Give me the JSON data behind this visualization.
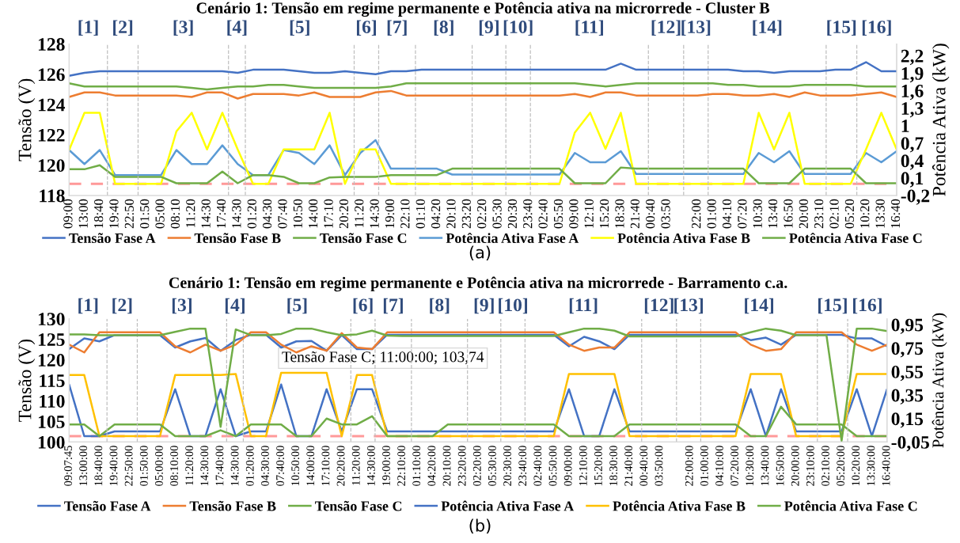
{
  "chart_data": [
    {
      "type": "line",
      "title": "Cenário 1: Tensão em regime permanente e Potência ativa na microrrede - Cluster B",
      "ylabel": "Tensão (V)",
      "y2label": "Potência Ativa (kW)",
      "legend": "bottom",
      "grid": false,
      "categories": [
        "09:00",
        "13:00",
        "18:40",
        "19:40",
        "22:50",
        "01:50",
        "05:00",
        "08:10",
        "11:20",
        "14:30",
        "17:40",
        "14:30",
        "01:20",
        "04:30",
        "07:40",
        "10:50",
        "14:00",
        "17:10",
        "20:20",
        "11:20",
        "14:30",
        "19:00",
        "22:10",
        "01:10",
        "04:20",
        "20:10",
        "23:20",
        "02:20",
        "05:30",
        "20:30",
        "23:40",
        "02:40",
        "05:50",
        "09:00",
        "12:10",
        "15:20",
        "18:30",
        "21:40",
        "00:40",
        "03:50",
        null,
        "22:00",
        "01:00",
        "04:10",
        "07:20",
        "10:30",
        "13:40",
        "16:50",
        "20:00",
        "23:10",
        "02:10",
        "05:20",
        "10:20",
        "13:30",
        "16:40"
      ],
      "ylim": [
        118,
        128
      ],
      "yticks": [
        118,
        120,
        122,
        124,
        126,
        128
      ],
      "y2lim": [
        -0.2,
        2.4
      ],
      "y2ticks": [
        {
          "value": -0.2,
          "label": "-0,2"
        },
        {
          "value": 0.1,
          "label": "0,1"
        },
        {
          "value": 0.4,
          "label": "0,4"
        },
        {
          "value": 0.7,
          "label": "0,7"
        },
        {
          "value": 1,
          "label": "1"
        },
        {
          "value": 1.3,
          "label": "1,3"
        },
        {
          "value": 1.6,
          "label": "1,6"
        },
        {
          "value": 1.9,
          "label": "1,9"
        },
        {
          "value": 2.2,
          "label": "2,2"
        }
      ],
      "series": [
        {
          "name": "Tensão Fase A",
          "color": "#4472c4",
          "values": [
            125.9,
            126.1,
            126.2,
            126.2,
            126.2,
            126.2,
            126.2,
            126.2,
            126.2,
            126.2,
            126.2,
            126.1,
            126.3,
            126.3,
            126.3,
            126.2,
            126.1,
            126.1,
            126.2,
            126.1,
            126.0,
            126.2,
            126.2,
            126.3,
            126.3,
            126.3,
            126.3,
            126.3,
            126.3,
            126.3,
            126.3,
            126.3,
            126.3,
            126.3,
            126.3,
            126.3,
            126.7,
            126.3,
            126.3,
            126.3,
            126.3,
            126.3,
            126.3,
            126.3,
            126.2,
            126.2,
            126.1,
            126.2,
            126.2,
            126.2,
            126.3,
            126.3,
            126.8,
            126.2,
            126.2
          ]
        },
        {
          "name": "Tensão Fase B",
          "color": "#ed7d31",
          "values": [
            124.5,
            124.8,
            124.8,
            124.6,
            124.6,
            124.6,
            124.6,
            124.6,
            124.5,
            124.8,
            124.8,
            124.4,
            124.7,
            124.7,
            124.7,
            124.6,
            124.8,
            124.5,
            124.5,
            124.5,
            124.8,
            124.9,
            124.6,
            124.6,
            124.6,
            124.6,
            124.6,
            124.6,
            124.6,
            124.6,
            124.6,
            124.6,
            124.6,
            124.7,
            124.5,
            124.8,
            124.8,
            124.6,
            124.6,
            124.6,
            124.6,
            124.6,
            124.7,
            124.7,
            124.6,
            124.6,
            124.7,
            124.5,
            124.8,
            124.6,
            124.6,
            124.6,
            124.7,
            124.8,
            124.5
          ]
        },
        {
          "name": "Tensão Fase C",
          "color": "#70ad47",
          "values": [
            125.4,
            125.2,
            125.2,
            125.2,
            125.2,
            125.2,
            125.2,
            125.2,
            125.1,
            125.0,
            125.1,
            125.2,
            125.2,
            125.3,
            125.3,
            125.2,
            125.1,
            125.1,
            125.1,
            125.1,
            125.1,
            125.2,
            125.4,
            125.4,
            125.4,
            125.4,
            125.4,
            125.4,
            125.4,
            125.4,
            125.4,
            125.4,
            125.4,
            125.4,
            125.3,
            125.2,
            125.3,
            125.4,
            125.4,
            125.4,
            125.4,
            125.4,
            125.4,
            125.3,
            125.3,
            125.2,
            125.2,
            125.2,
            125.3,
            125.3,
            125.3,
            125.3,
            125.2,
            125.2,
            125.2
          ]
        },
        {
          "name": "Potência Ativa Fase A",
          "color": "#5b9bd5",
          "axis": "y2",
          "values": [
            0.58,
            0.34,
            0.58,
            0.15,
            0.15,
            0.15,
            0.15,
            0.58,
            0.34,
            0.34,
            0.66,
            0.34,
            0.15,
            0.15,
            0.58,
            0.53,
            0.34,
            0.66,
            0.15,
            0.53,
            0.75,
            0.26,
            0.26,
            0.26,
            0.26,
            0.16,
            0.16,
            0.16,
            0.16,
            0.16,
            0.16,
            0.16,
            0.16,
            0.53,
            0.37,
            0.37,
            0.56,
            0.17,
            0.17,
            0.17,
            0.17,
            0.17,
            0.17,
            0.17,
            0.17,
            0.53,
            0.37,
            0.56,
            0.17,
            0.17,
            0.17,
            0.17,
            0.53,
            0.37,
            0.56
          ]
        },
        {
          "name": "Potência Ativa Fase B",
          "color": "#ffff00",
          "axis": "y2",
          "values": [
            0.58,
            1.22,
            1.22,
            0,
            0,
            0,
            0,
            0.9,
            1.22,
            0.59,
            1.22,
            0.59,
            0,
            0,
            0.59,
            0.59,
            0.59,
            1.22,
            0,
            0.59,
            0.59,
            0,
            0,
            0,
            0,
            0,
            0,
            0,
            0,
            0,
            0,
            0,
            0,
            0.88,
            1.22,
            0.6,
            1.22,
            0,
            0,
            0,
            0,
            0,
            0,
            0,
            0,
            1.22,
            0.59,
            1.22,
            0,
            0,
            0,
            0,
            0.59,
            1.22,
            0.59
          ]
        },
        {
          "name": "Potência Ativa Fase C",
          "color": "#70ad47",
          "axis": "y2",
          "values": [
            0.25,
            0.25,
            0.32,
            0.12,
            0.12,
            0.12,
            0.12,
            0.01,
            0.01,
            0.01,
            0.21,
            0.01,
            0.15,
            0.15,
            0.12,
            0.01,
            0.01,
            0.11,
            0.12,
            0.12,
            0.12,
            0.15,
            0.15,
            0.15,
            0.15,
            0.26,
            0.26,
            0.26,
            0.26,
            0.26,
            0.26,
            0.26,
            0.26,
            0.01,
            0.01,
            0.01,
            0.28,
            0.26,
            0.26,
            0.26,
            0.26,
            0.26,
            0.26,
            0.26,
            0.26,
            0.01,
            0.01,
            0.01,
            0.26,
            0.26,
            0.26,
            0.26,
            0.01,
            0.01,
            0.01
          ]
        }
      ],
      "ref_lines": [
        {
          "axis": "y2",
          "value": 0,
          "color": "#ff9999",
          "line_style": "dashed"
        }
      ],
      "annotations": [
        "(a)",
        "[1]",
        "[2]",
        "[3]",
        "[4]",
        "[5]",
        "[6]",
        "[7]",
        "[8]",
        "[9]",
        "[10]",
        "[11]",
        "[12]",
        "[13]",
        "[14]",
        "[15]",
        "[16]"
      ]
    },
    {
      "type": "line",
      "title": "Cenário 1: Tensão em regime permanente e Potência ativa na microrrede - Barramento c.a.",
      "ylabel": "Tensão (V)",
      "y2label": "Potência Ativa (kW)",
      "legend": "bottom",
      "grid": false,
      "categories": [
        "09:07:45",
        "13:00:00",
        "18:40:00",
        "19:40:00",
        "22:50:00",
        "01:50:00",
        "05:00:00",
        "08:10:00",
        "11:20:00",
        "14:30:00",
        "17:40:00",
        "14:30:00",
        "01:20:00",
        "04:30:00",
        "07:40:00",
        "10:50:00",
        "14:00:00",
        "17:10:00",
        "20:20:00",
        "11:20:00",
        "14:30:00",
        "19:00:00",
        "22:10:00",
        "01:10:00",
        "04:20:00",
        "20:10:00",
        "23:20:00",
        "02:20:00",
        "05:30:00",
        "20:30:00",
        "23:40:00",
        "02:40:00",
        "05:50:00",
        "09:00:00",
        "12:10:00",
        "15:20:00",
        "18:30:00",
        "21:40:00",
        "00:40:00",
        "03:50:00",
        null,
        "22:00:00",
        "01:00:00",
        "04:10:00",
        "07:20:00",
        "10:30:00",
        "13:40:00",
        "16:50:00",
        "20:00:00",
        "23:10:00",
        "02:10:00",
        "05:20:00",
        "10:20:00",
        "13:30:00",
        "16:40:00"
      ],
      "ylim": [
        100,
        130
      ],
      "yticks": [
        100,
        105,
        110,
        115,
        120,
        125,
        130
      ],
      "y2lim": [
        -0.05,
        1.0
      ],
      "y2ticks": [
        {
          "value": -0.05,
          "label": "-0,05"
        },
        {
          "value": 0.15,
          "label": "0,15"
        },
        {
          "value": 0.35,
          "label": "0,35"
        },
        {
          "value": 0.55,
          "label": "0,55"
        },
        {
          "value": 0.75,
          "label": "0,75"
        },
        {
          "value": 0.95,
          "label": "0,95"
        }
      ],
      "series": [
        {
          "name": "Tensão Fase A",
          "color": "#4472c4",
          "values": [
            122.6,
            125.2,
            124.5,
            126.0,
            126.0,
            126.0,
            126.0,
            123.0,
            124.5,
            125.3,
            122.2,
            124.8,
            126.1,
            126.1,
            123.0,
            124.5,
            124.6,
            122.2,
            126.0,
            122.6,
            122.6,
            126.1,
            126.1,
            126.1,
            126.1,
            126.1,
            126.1,
            126.1,
            126.1,
            126.1,
            126.1,
            126.1,
            126.1,
            123.3,
            125.6,
            124.5,
            122.6,
            126.1,
            126.1,
            126.1,
            126.1,
            126.1,
            126.1,
            126.1,
            126.1,
            124.8,
            125.4,
            123.7,
            126.1,
            126.1,
            126.1,
            126.1,
            125.2,
            125.2,
            123.3
          ]
        },
        {
          "name": "Tensão Fase B",
          "color": "#ed7d31",
          "values": [
            123.7,
            121.8,
            126.7,
            126.7,
            126.7,
            126.7,
            126.7,
            123.3,
            121.8,
            123.7,
            122.2,
            123.7,
            126.7,
            126.7,
            123.7,
            121.8,
            123.3,
            122.2,
            126.5,
            123.0,
            122.6,
            126.7,
            126.7,
            126.7,
            126.7,
            126.7,
            126.7,
            126.7,
            126.7,
            126.7,
            126.7,
            126.7,
            126.7,
            123.7,
            122.2,
            123.0,
            123.0,
            126.7,
            126.7,
            126.7,
            126.7,
            126.7,
            126.7,
            126.7,
            126.7,
            123.7,
            122.2,
            122.6,
            126.7,
            126.7,
            126.7,
            126.7,
            123.7,
            122.2,
            123.7
          ]
        },
        {
          "name": "Tensão Fase C",
          "color": "#70ad47",
          "values": [
            126.2,
            126.2,
            126.0,
            126.0,
            126.0,
            126.0,
            126.0,
            126.8,
            127.6,
            127.6,
            103.7,
            127.4,
            126.0,
            126.0,
            126.3,
            127.6,
            127.6,
            126.7,
            126.0,
            126.2,
            127.1,
            125.9,
            125.8,
            125.8,
            125.8,
            125.8,
            125.8,
            125.8,
            125.8,
            125.8,
            125.8,
            125.8,
            125.8,
            126.7,
            127.6,
            127.6,
            127.1,
            125.7,
            125.7,
            125.7,
            125.7,
            125.7,
            125.7,
            125.7,
            125.7,
            126.7,
            127.6,
            127.1,
            126.0,
            126.0,
            126.0,
            100.3,
            127.6,
            127.6,
            127.0
          ]
        },
        {
          "name": "Potência Ativa Fase A",
          "color": "#4472c4",
          "axis": "y2",
          "values": [
            0.44,
            0,
            0,
            0.04,
            0.04,
            0.04,
            0.04,
            0.4,
            0,
            0,
            0.4,
            0,
            0.04,
            0.04,
            0.44,
            0,
            0,
            0.4,
            0.04,
            0.4,
            0.4,
            0.04,
            0.04,
            0.04,
            0.04,
            0.04,
            0.04,
            0.04,
            0.04,
            0.04,
            0.04,
            0.04,
            0.04,
            0.4,
            0,
            0,
            0.4,
            0.04,
            0.04,
            0.04,
            0.04,
            0.04,
            0.04,
            0.04,
            0.04,
            0.4,
            0,
            0.4,
            0.04,
            0.04,
            0.04,
            0.04,
            0.4,
            0,
            0.4
          ]
        },
        {
          "name": "Potência Ativa Fase B",
          "color": "#ffc000",
          "axis": "y2",
          "values": [
            0.52,
            0.52,
            0,
            0,
            0,
            0,
            0,
            0.52,
            0.52,
            0.52,
            0.52,
            0.53,
            0,
            0,
            0.54,
            0.54,
            0.54,
            0.54,
            0,
            0.52,
            0.52,
            0,
            0,
            0,
            0,
            0,
            0,
            0,
            0,
            0,
            0,
            0,
            0,
            0.53,
            0.53,
            0.53,
            0.53,
            0,
            0,
            0,
            0,
            0,
            0,
            0,
            0,
            0.53,
            0.53,
            0.53,
            0,
            0,
            0,
            0,
            0.53,
            0.53,
            0.53
          ]
        },
        {
          "name": "Potência Ativa Fase C",
          "color": "#70ad47",
          "axis": "y2",
          "values": [
            0.1,
            0.1,
            0,
            0.1,
            0.1,
            0.1,
            0.1,
            0,
            0,
            0,
            0.05,
            0,
            0.1,
            0.1,
            0.1,
            0,
            0,
            0.15,
            0.1,
            0.1,
            0.17,
            0,
            0,
            0,
            0,
            0.1,
            0.1,
            0.1,
            0.1,
            0.1,
            0.1,
            0.1,
            0.1,
            0,
            0,
            0,
            0,
            0.1,
            0.1,
            0.1,
            0.1,
            0.1,
            0.1,
            0.1,
            0.1,
            0,
            0,
            0.25,
            0.1,
            0.1,
            0.1,
            0.1,
            0,
            0,
            0
          ]
        }
      ],
      "ref_lines": [
        {
          "axis": "y2",
          "value": 0,
          "color": "#ff9999",
          "line_style": "dashed"
        }
      ],
      "annotations": [
        "(b)",
        "Tensão Fase C; 11:00:00; 103,74",
        "[1]",
        "[2]",
        "[3]",
        "[4]",
        "[5]",
        "[6]",
        "[7]",
        "[8]",
        "[9]",
        "[10]",
        "[11]",
        "[12]",
        "[13]",
        "[14]",
        "[15]",
        "[16]"
      ]
    }
  ]
}
